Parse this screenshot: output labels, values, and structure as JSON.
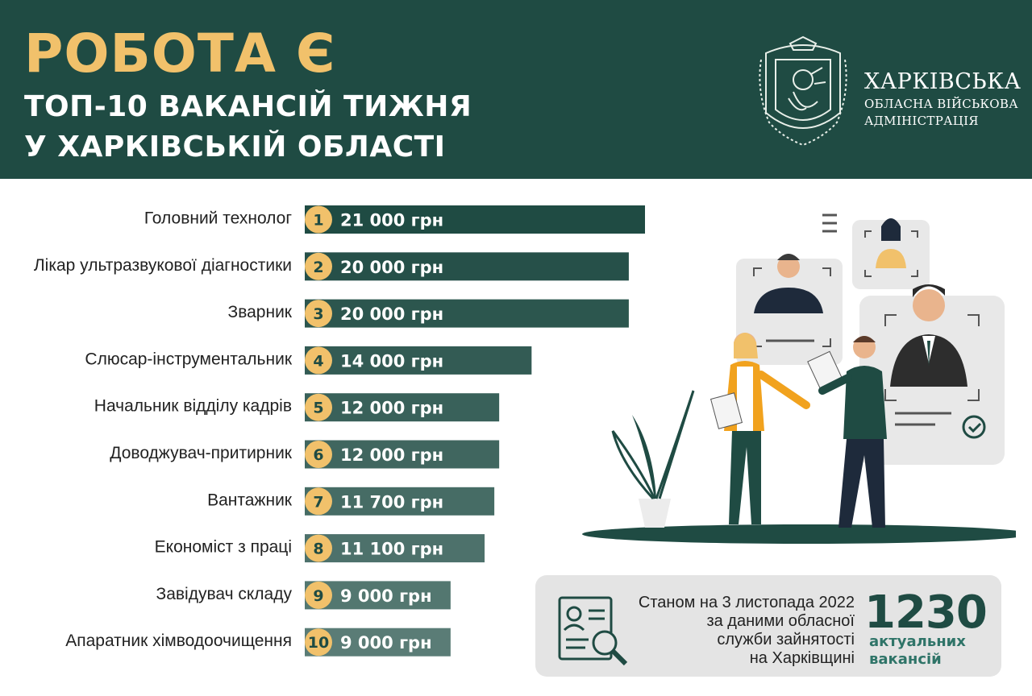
{
  "header": {
    "title": "РОБОТА Є",
    "subtitle_line1": "ТОП-10 ВАКАНСІЙ ТИЖНЯ",
    "subtitle_line2": "У ХАРКІВСЬКІЙ ОБЛАСТІ",
    "org_line1": "ХАРКІВСЬКА",
    "org_line2": "ОБЛАСНА ВІЙСЬКОВА",
    "org_line3": "АДМІНІСТРАЦІЯ",
    "logo_icon": "kharkiv-oblast-coat-of-arms-icon"
  },
  "colors": {
    "header_bg": "#1f4b43",
    "title_accent": "#f1c16b",
    "rank_badge": "#f1c16b",
    "bar_dark": "#1f4b43",
    "bar_light": "#5a7c76",
    "info_box_bg": "#e4e4e4"
  },
  "chart_data": {
    "type": "bar",
    "orientation": "horizontal",
    "title": "",
    "unit": "грн",
    "categories": [
      "Головний технолог",
      "Лікар ультразвукової діагностики",
      "Зварник",
      "Слюсар-інструментальник",
      "Начальник відділу кадрів",
      "Доводжувач-притирник",
      "Вантажник",
      "Економіст з праці",
      "Завідувач складу",
      "Апаратник хімводоочищення"
    ],
    "ranks": [
      "1",
      "2",
      "3",
      "4",
      "5",
      "6",
      "7",
      "8",
      "9",
      "10"
    ],
    "values": [
      21000,
      20000,
      20000,
      14000,
      12000,
      12000,
      11700,
      11100,
      9000,
      9000
    ],
    "value_labels": [
      "21 000 грн",
      "20 000 грн",
      "20 000 грн",
      "14 000 грн",
      "12 000 грн",
      "12 000 грн",
      "11 700 грн",
      "11 100 грн",
      "9 000 грн",
      "9 000 грн"
    ],
    "xlim": [
      0,
      21000
    ],
    "grid": false,
    "legend": "none"
  },
  "info": {
    "icon": "resume-search-icon",
    "line1": "Станом на 3 листопада 2022",
    "line2": "за даними обласної",
    "line3": "служби зайнятості",
    "line4": "на Харківщині",
    "count": "1230",
    "count_label1": "актуальних",
    "count_label2": "вакансій"
  },
  "illustration": {
    "icon": "recruitment-illustration",
    "description_icons": [
      "candidate-card-icon",
      "checkmark-icon",
      "plant-icon"
    ]
  }
}
